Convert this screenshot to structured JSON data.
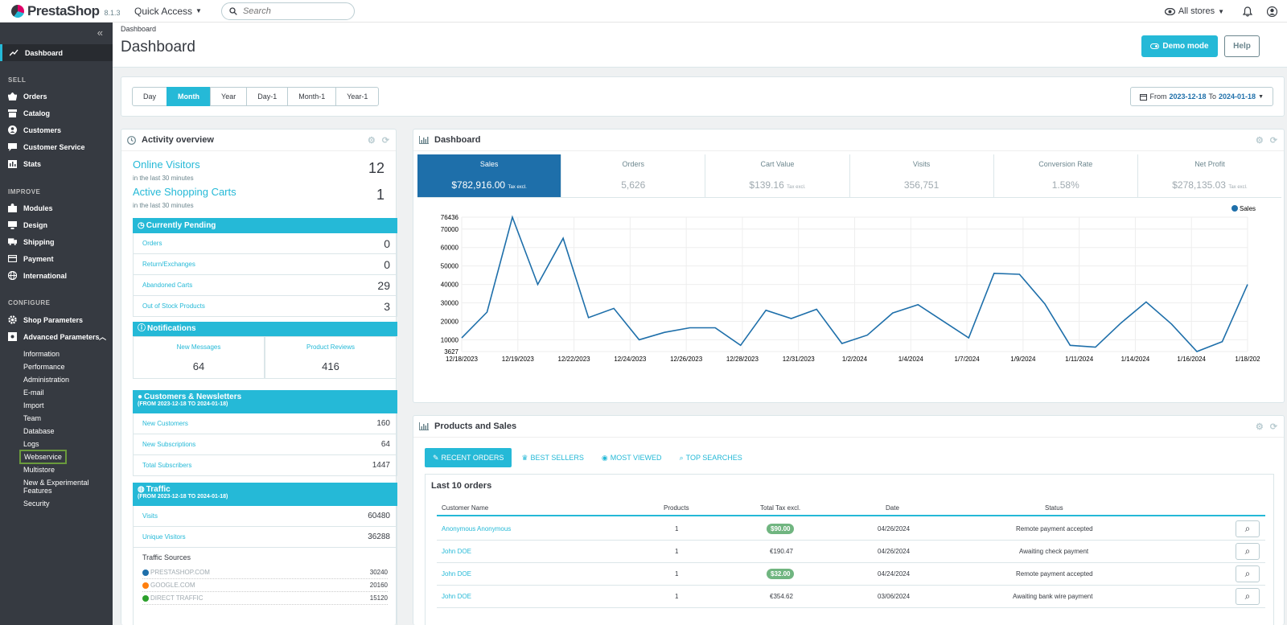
{
  "topbar": {
    "brand": "PrestaShop",
    "version": "8.1.3",
    "quick_access": "Quick Access",
    "search_placeholder": "Search",
    "stores": "All stores"
  },
  "sidebar": {
    "dashboard": "Dashboard",
    "sections": {
      "sell": "SELL",
      "improve": "IMPROVE",
      "configure": "CONFIGURE"
    },
    "sell_items": [
      "Orders",
      "Catalog",
      "Customers",
      "Customer Service",
      "Stats"
    ],
    "improve_items": [
      "Modules",
      "Design",
      "Shipping",
      "Payment",
      "International"
    ],
    "configure_items": [
      "Shop Parameters",
      "Advanced Parameters"
    ],
    "advanced_sub": [
      "Information",
      "Performance",
      "Administration",
      "E-mail",
      "Import",
      "Team",
      "Database",
      "Logs",
      "Webservice",
      "Multistore",
      "New & Experimental Features",
      "Security"
    ]
  },
  "header": {
    "breadcrumb": "Dashboard",
    "title": "Dashboard",
    "demo_mode": "Demo mode",
    "help": "Help"
  },
  "period": {
    "buttons": [
      "Day",
      "Month",
      "Year",
      "Day-1",
      "Month-1",
      "Year-1"
    ],
    "active": "Month",
    "from_label": "From",
    "from": "2023-12-18",
    "to_label": "To",
    "to": "2024-01-18"
  },
  "activity": {
    "title": "Activity overview",
    "online_visitors": "Online Visitors",
    "online_visitors_sub": "in the last 30 minutes",
    "online_visitors_val": "12",
    "active_carts": "Active Shopping Carts",
    "active_carts_sub": "in the last 30 minutes",
    "active_carts_val": "1",
    "pending_title": "Currently Pending",
    "pending": [
      {
        "label": "Orders",
        "value": "0"
      },
      {
        "label": "Return/Exchanges",
        "value": "0"
      },
      {
        "label": "Abandoned Carts",
        "value": "29"
      },
      {
        "label": "Out of Stock Products",
        "value": "3"
      }
    ],
    "notifications_title": "Notifications",
    "new_messages": "New Messages",
    "new_messages_val": "64",
    "product_reviews": "Product Reviews",
    "product_reviews_val": "416",
    "customers_title": "Customers & Newsletters",
    "customers_range": "(FROM 2023-12-18 TO 2024-01-18)",
    "customers": [
      {
        "label": "New Customers",
        "value": "160"
      },
      {
        "label": "New Subscriptions",
        "value": "64"
      },
      {
        "label": "Total Subscribers",
        "value": "1447"
      }
    ],
    "traffic_title": "Traffic",
    "traffic_range": "(FROM 2023-12-18 TO 2024-01-18)",
    "traffic": [
      {
        "label": "Visits",
        "value": "60480"
      },
      {
        "label": "Unique Visitors",
        "value": "36288"
      }
    ],
    "traffic_sources_title": "Traffic Sources",
    "sources": [
      {
        "label": "PRESTASHOP.COM",
        "value": "30240",
        "color": "#1e6faa"
      },
      {
        "label": "GOOGLE.COM",
        "value": "20160",
        "color": "#ff7f0e"
      },
      {
        "label": "DIRECT TRAFFIC",
        "value": "15120",
        "color": "#2ca02c"
      }
    ]
  },
  "dashboard": {
    "title": "Dashboard",
    "kpis": [
      {
        "label": "Sales",
        "value": "$782,916.00",
        "suffix": "Tax excl."
      },
      {
        "label": "Orders",
        "value": "5,626",
        "suffix": ""
      },
      {
        "label": "Cart Value",
        "value": "$139.16",
        "suffix": "Tax excl."
      },
      {
        "label": "Visits",
        "value": "356,751",
        "suffix": ""
      },
      {
        "label": "Conversion Rate",
        "value": "1.58%",
        "suffix": ""
      },
      {
        "label": "Net Profit",
        "value": "$278,135.03",
        "suffix": "Tax excl."
      }
    ]
  },
  "chart_data": {
    "type": "line",
    "title": "",
    "xlabel": "",
    "ylabel": "",
    "legend": "Sales",
    "legend_position": "top-right",
    "ylim": [
      3627,
      76436
    ],
    "yticks": [
      3627,
      10000,
      20000,
      30000,
      40000,
      50000,
      60000,
      70000,
      76436
    ],
    "xticks": [
      "12/18/2023",
      "12/19/2023",
      "12/22/2023",
      "12/24/2023",
      "12/26/2023",
      "12/28/2023",
      "12/31/2023",
      "1/2/2024",
      "1/4/2024",
      "1/7/2024",
      "1/9/2024",
      "1/11/2024",
      "1/14/2024",
      "1/16/2024",
      "1/18/202"
    ],
    "color": "#1e6faa",
    "grid": true,
    "series": [
      {
        "name": "Sales",
        "values": [
          11000,
          25000,
          76436,
          40000,
          65000,
          22000,
          27000,
          10000,
          14000,
          16500,
          16500,
          7000,
          26000,
          21500,
          26500,
          8000,
          12500,
          24500,
          29000,
          20000,
          11000,
          46000,
          45500,
          29500,
          7000,
          6000,
          19000,
          30500,
          18500,
          3627,
          9000,
          40000
        ]
      }
    ]
  },
  "products": {
    "title": "Products and Sales",
    "tabs": [
      "RECENT ORDERS",
      "BEST SELLERS",
      "MOST VIEWED",
      "TOP SEARCHES"
    ],
    "last_orders_title": "Last 10 orders",
    "columns": [
      "Customer Name",
      "Products",
      "Total Tax excl.",
      "Date",
      "Status"
    ],
    "rows": [
      {
        "customer": "Anonymous Anonymous",
        "products": "1",
        "total": "$90.00",
        "badge": true,
        "date": "04/26/2024",
        "status": "Remote payment accepted"
      },
      {
        "customer": "John DOE",
        "products": "1",
        "total": "€190.47",
        "badge": false,
        "date": "04/26/2024",
        "status": "Awaiting check payment"
      },
      {
        "customer": "John DOE",
        "products": "1",
        "total": "$32.00",
        "badge": true,
        "date": "04/24/2024",
        "status": "Remote payment accepted"
      },
      {
        "customer": "John DOE",
        "products": "1",
        "total": "€354.62",
        "badge": false,
        "date": "03/06/2024",
        "status": "Awaiting bank wire payment"
      }
    ]
  }
}
